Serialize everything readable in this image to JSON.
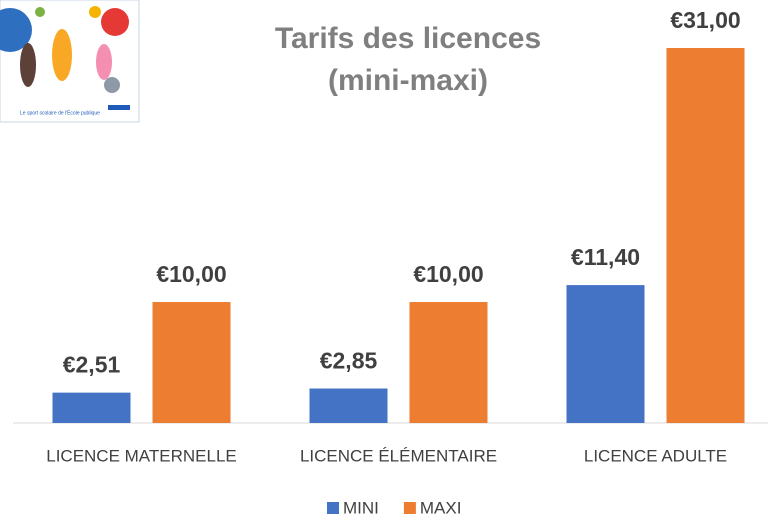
{
  "chart_data": {
    "type": "bar",
    "title": [
      "Tarifs des licences",
      "(mini-maxi)"
    ],
    "logo_text": "Le sport scolaire de l'École publique",
    "categories": [
      "LICENCE MATERNELLE",
      "LICENCE ÉLÉMENTAIRE",
      "LICENCE ADULTE"
    ],
    "series": [
      {
        "name": "MINI",
        "color": "#4472c4",
        "values": [
          2.51,
          2.85,
          11.4
        ],
        "value_labels": [
          "€2,51",
          "€2,85",
          "€11,40"
        ]
      },
      {
        "name": "MAXI",
        "color": "#ed7d31",
        "values": [
          10,
          10,
          31
        ],
        "value_labels": [
          "€10,00",
          "€10,00",
          "€31,00"
        ]
      }
    ],
    "legend": "bottom"
  }
}
